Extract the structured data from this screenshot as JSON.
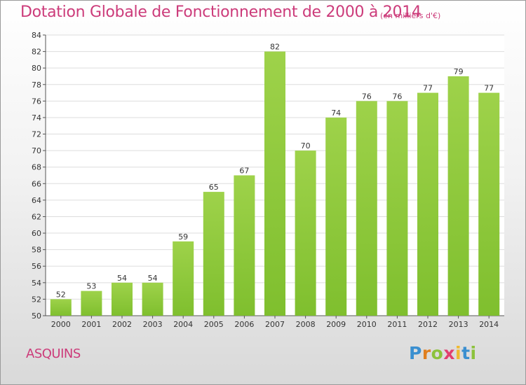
{
  "chart_data": {
    "type": "bar",
    "title": "Dotation Globale de Fonctionnement de 2000 à 2014",
    "subtitle": "(en milliers d'€)",
    "categories": [
      "2000",
      "2001",
      "2002",
      "2003",
      "2004",
      "2005",
      "2006",
      "2007",
      "2008",
      "2009",
      "2010",
      "2011",
      "2012",
      "2013",
      "2014"
    ],
    "values": [
      52,
      53,
      54,
      54,
      59,
      65,
      67,
      82,
      70,
      74,
      76,
      76,
      77,
      79,
      77
    ],
    "ylim": [
      50,
      84
    ],
    "yticks": [
      50,
      52,
      54,
      56,
      58,
      60,
      62,
      64,
      66,
      68,
      70,
      72,
      74,
      76,
      78,
      80,
      82,
      84
    ],
    "grid": true,
    "bar_color": "#7fbf2e",
    "bar_color_light": "#9ed24a",
    "title_color": "#cc3b7a"
  },
  "footer": {
    "place": "ASQUINS",
    "logo_letters": [
      "P",
      "r",
      "o",
      "x",
      "i",
      "t",
      "i"
    ],
    "logo_colors": [
      "#3a8fd0",
      "#e07f1f",
      "#8cc23c",
      "#e23f6f",
      "#f0b92f",
      "#3a8fd0",
      "#8cc23c"
    ]
  }
}
